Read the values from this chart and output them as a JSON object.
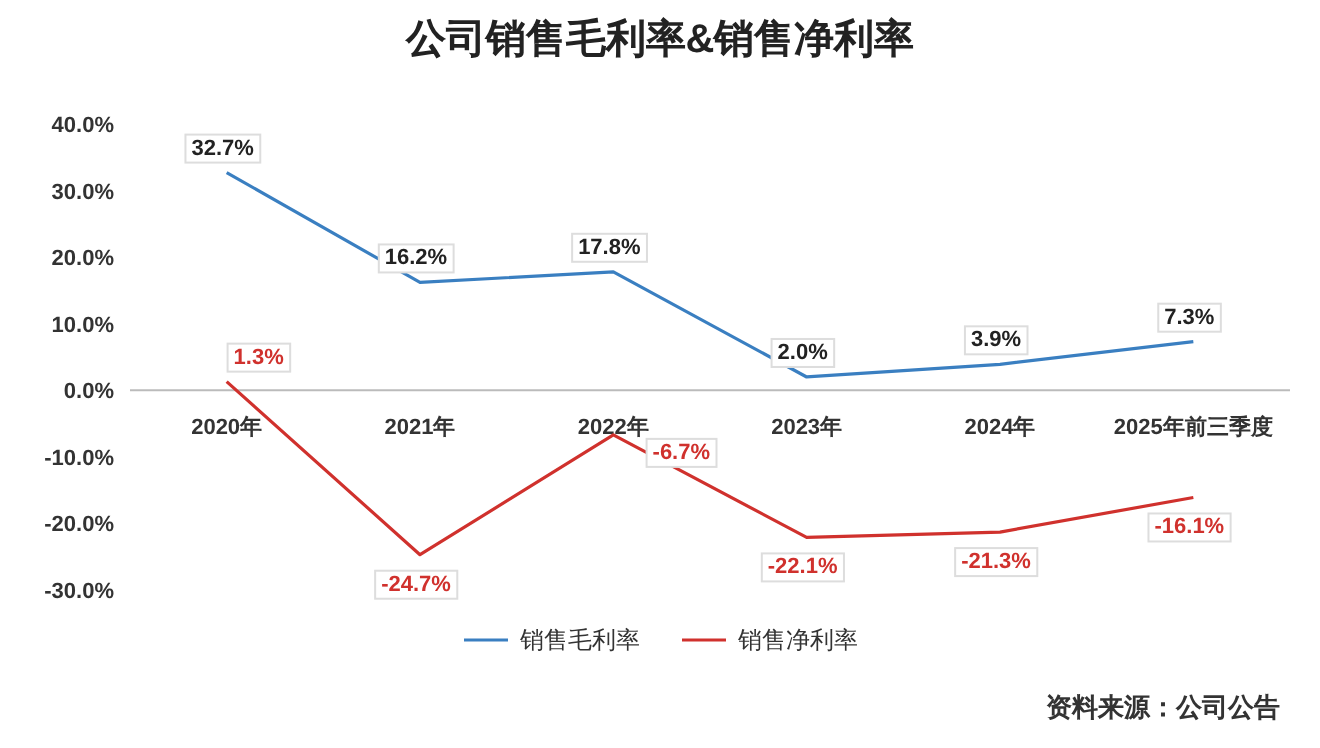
{
  "chart_data": {
    "type": "line",
    "title": "公司销售毛利率&销售净利率",
    "categories": [
      "2020年",
      "2021年",
      "2022年",
      "2023年",
      "2024年",
      "2025年前三季度"
    ],
    "series": [
      {
        "name": "销售毛利率",
        "color": "#3a7fc1",
        "values": [
          32.7,
          16.2,
          17.8,
          2.0,
          3.9,
          7.3
        ],
        "value_labels": [
          "32.7%",
          "16.2%",
          "17.8%",
          "2.0%",
          "3.9%",
          "7.3%"
        ]
      },
      {
        "name": "销售净利率",
        "color": "#d0312d",
        "values": [
          1.3,
          -24.7,
          -6.7,
          -22.1,
          -21.3,
          -16.1
        ],
        "value_labels": [
          "1.3%",
          "-24.7%",
          "-6.7%",
          "-22.1%",
          "-21.3%",
          "-16.1%"
        ]
      }
    ],
    "ylim": [
      -30,
      40
    ],
    "yticks": [
      {
        "value": 40,
        "label": "40.0%"
      },
      {
        "value": 30,
        "label": "30.0%"
      },
      {
        "value": 20,
        "label": "20.0%"
      },
      {
        "value": 10,
        "label": "10.0%"
      },
      {
        "value": 0,
        "label": "0.0%"
      },
      {
        "value": -10,
        "label": "-10.0%"
      },
      {
        "value": -20,
        "label": "-20.0%"
      },
      {
        "value": -30,
        "label": "-30.0%"
      }
    ],
    "grid": false,
    "legend": "bottom",
    "line_style": "solid",
    "annotations": [
      "资料来源：公司公告"
    ]
  }
}
